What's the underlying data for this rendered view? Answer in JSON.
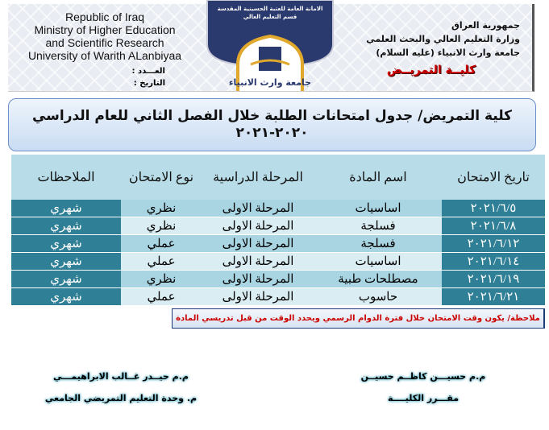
{
  "header": {
    "english": [
      "Republic of Iraq",
      "Ministry of Higher Education",
      "and Scientific Research",
      "University of Warith ALanbiyaa"
    ],
    "ref_number_label": "العـــدد :",
    "date_label": "التاريخ :",
    "arabic": [
      "جمهورية العراق",
      "وزارة التعليم العالي والبحث العلمي",
      "جامعة وارث الانبياء (عليه السلام)"
    ],
    "college": "كليــة التمريــض",
    "logo_text": [
      "الامانة العامة للعتبة الحسينية المقدسة",
      "قسم التعليم العالي"
    ],
    "logo_caption": "جامعة وارث الانبياء",
    "colors": {
      "shield": "#2a3a6e",
      "gold": "#e0a82c",
      "college": "#cc0000"
    }
  },
  "title": "كلية التمريض/ جدول امتحانات الطلبة خلال الفصل الثاني للعام الدراسي ٢٠٢٠-٢٠٢١",
  "table": {
    "headers": [
      "تاريخ الامتحان",
      "اسم المادة",
      "المرحلة الدراسية",
      "نوع الامتحان",
      "الملاحظات"
    ],
    "rows": [
      [
        "٢٠٢١/٦/٥",
        "اساسيات",
        "المرحلة الاولى",
        "نظري",
        "شهري"
      ],
      [
        "٢٠٢١/٦/٨",
        "فسلجة",
        "المرحلة الاولى",
        "نظري",
        "شهري"
      ],
      [
        "٢٠٢١/٦/١٢",
        "فسلجة",
        "المرحلة الاولى",
        "عملي",
        "شهري"
      ],
      [
        "٢٠٢١/٦/١٤",
        "اساسيات",
        "المرحلة الاولى",
        "عملي",
        "شهري"
      ],
      [
        "٢٠٢١/٦/١٩",
        "مصطلحات طبية",
        "المرحلة الاولى",
        "نظري",
        "شهري"
      ],
      [
        "٢٠٢١/٦/٢١",
        "حاسوب",
        "المرحلة الاولى",
        "عملي",
        "شهري"
      ]
    ],
    "colors": {
      "dark": "#2f7f96",
      "header": "#b8dde8"
    }
  },
  "note": "ملاحظة/ يكون وقت الامتحان خلال فترة الدوام الرسمي ويحدد الوقت من قبل تدريسي المادة",
  "signatures": {
    "right": [
      "م.م حسيـــن كاظــم حسيــن",
      "مقـــرر الكليــــة"
    ],
    "left": [
      "م.م حيــدر غــالب الابراهيمـــي",
      "م. وحدة التعليم التمريضي الجامعي"
    ]
  }
}
